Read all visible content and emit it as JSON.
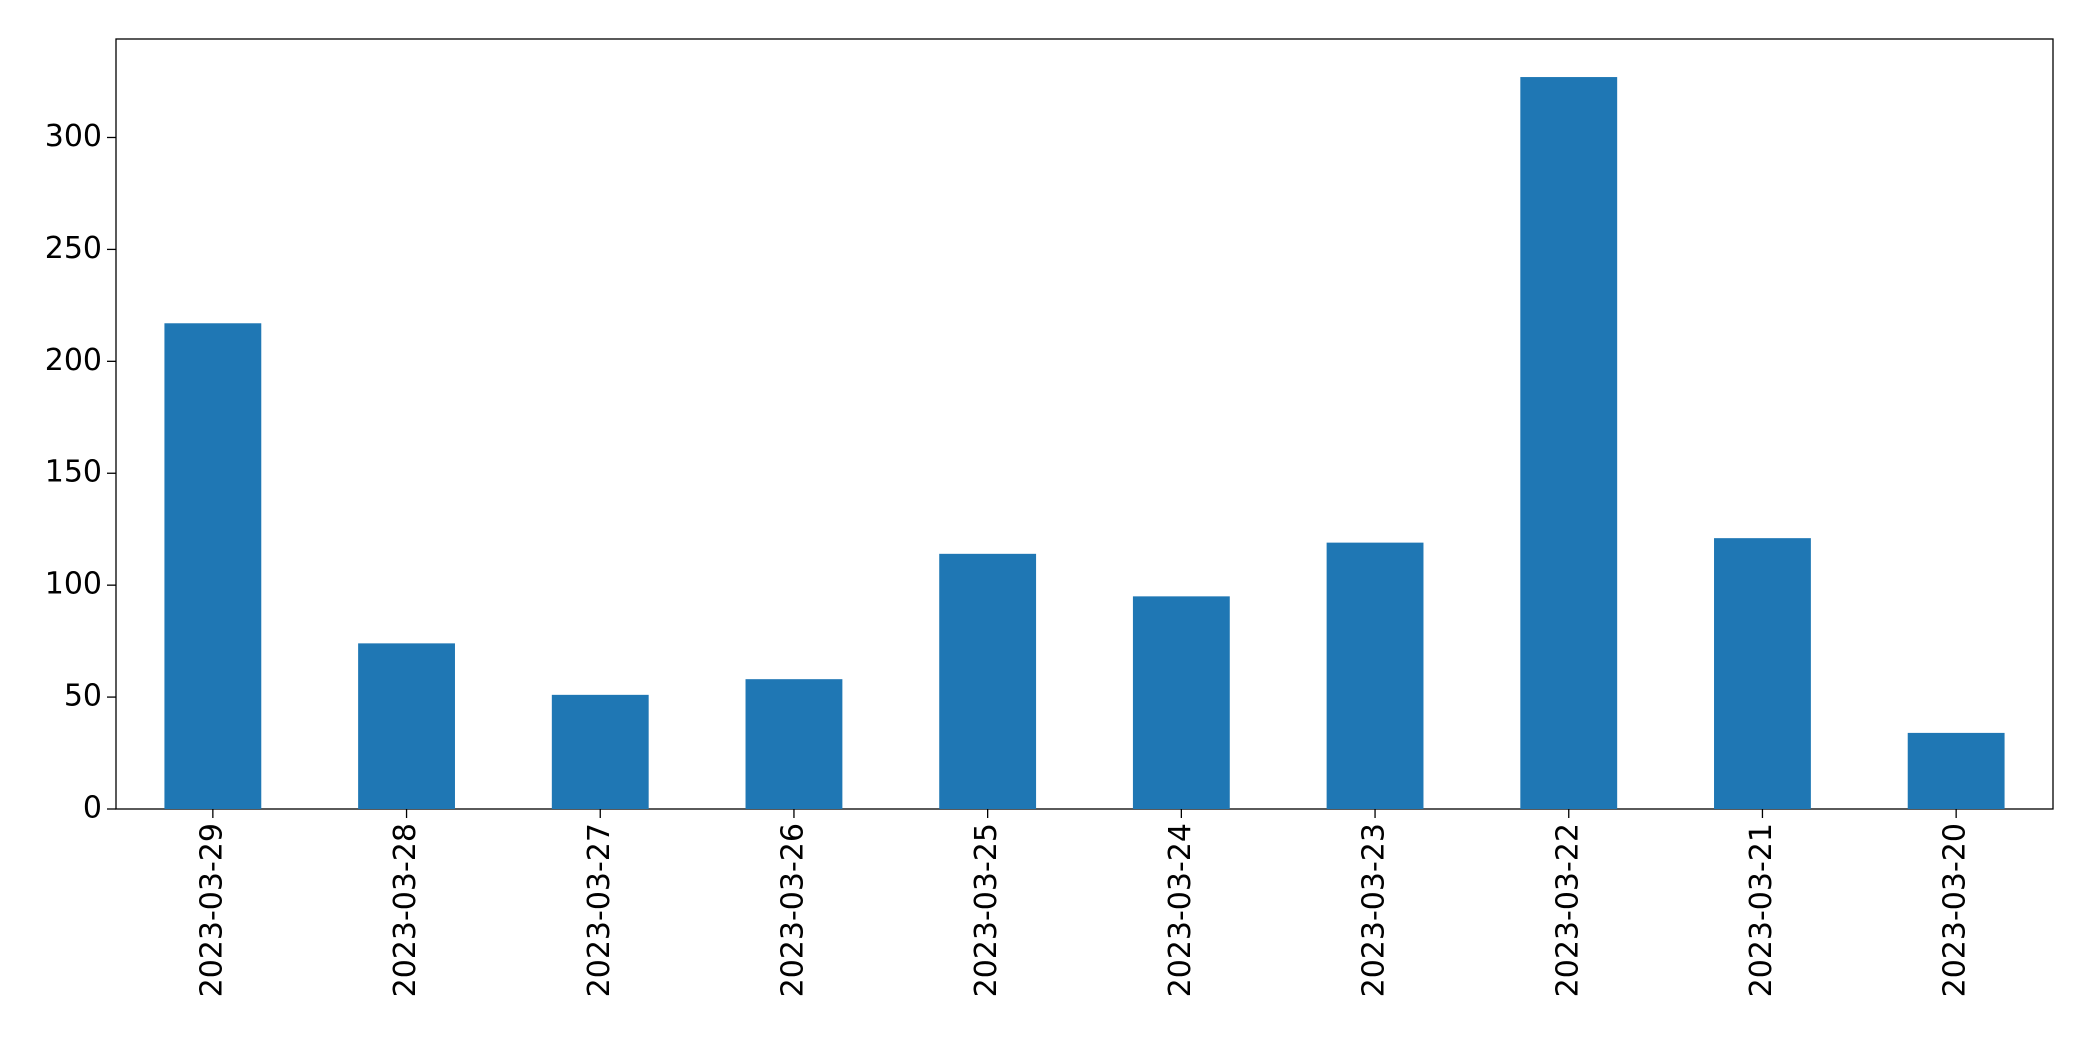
{
  "chart_data": {
    "type": "bar",
    "categories": [
      "2023-03-29",
      "2023-03-28",
      "2023-03-27",
      "2023-03-26",
      "2023-03-25",
      "2023-03-24",
      "2023-03-23",
      "2023-03-22",
      "2023-03-21",
      "2023-03-20"
    ],
    "values": [
      217,
      74,
      51,
      58,
      114,
      95,
      119,
      327,
      121,
      34
    ],
    "color": "#1f77b4",
    "ylim": [
      0,
      344
    ],
    "yticks": [
      0,
      50,
      100,
      150,
      200,
      250,
      300
    ],
    "grid": false
  }
}
